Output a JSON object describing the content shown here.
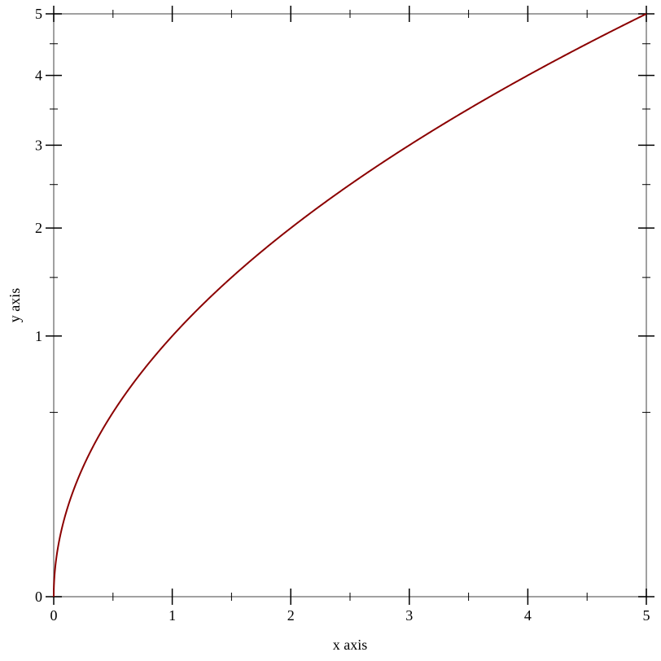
{
  "chart_data": {
    "type": "line",
    "title": "",
    "xlabel": "x axis",
    "ylabel": "y axis",
    "xlim": [
      0,
      5
    ],
    "ylim": [
      0,
      5
    ],
    "y_scale": "sqrt",
    "grid": false,
    "x_ticks": [
      "0",
      "1",
      "2",
      "3",
      "4",
      "5"
    ],
    "y_ticks": [
      "0",
      "1",
      "2",
      "3",
      "4",
      "5"
    ],
    "series": [
      {
        "function": "y = x",
        "x_range": [
          0,
          5
        ],
        "color": "#8b0000",
        "x": [
          0,
          0.5,
          1,
          1.5,
          2,
          2.5,
          3,
          3.5,
          4,
          4.5,
          5
        ],
        "y": [
          0,
          0.5,
          1,
          1.5,
          2,
          2.5,
          3,
          3.5,
          4,
          4.5,
          5
        ]
      }
    ]
  }
}
